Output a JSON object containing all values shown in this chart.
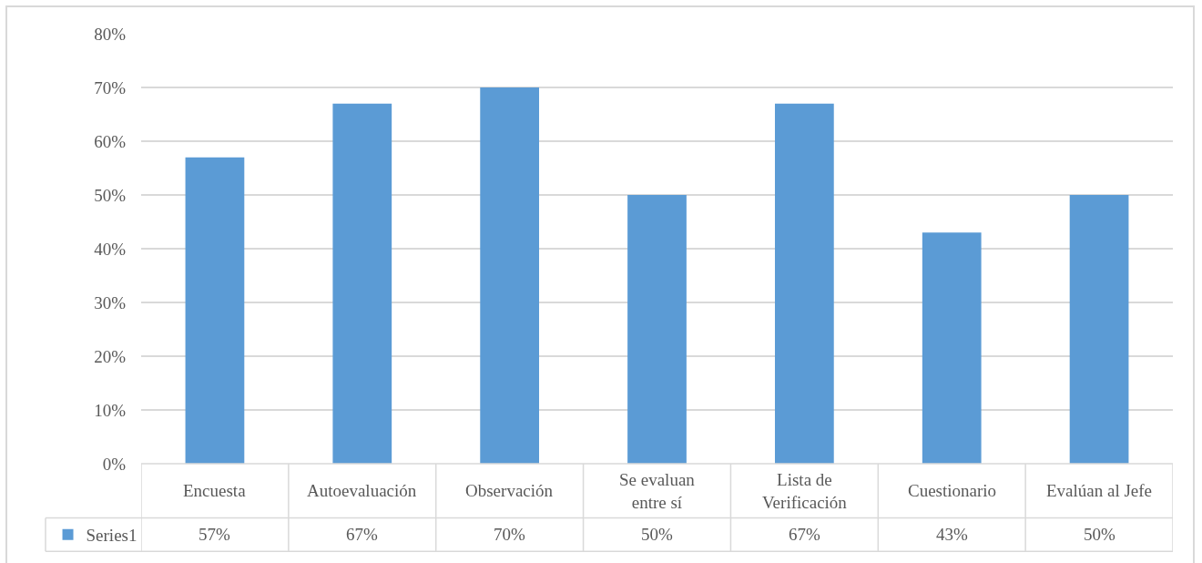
{
  "chart_data": {
    "type": "bar",
    "categories": [
      "Encuesta",
      "Autoevaluación",
      "Observación",
      "Se evaluan entre sí",
      "Lista de Verificación",
      "Cuestionario",
      "Evalúan al Jefe"
    ],
    "series": [
      {
        "name": "Series1",
        "color": "#5b9bd5",
        "values": [
          57,
          67,
          70,
          50,
          67,
          43,
          50
        ]
      }
    ],
    "ylim": [
      0,
      80
    ],
    "yticks": [
      {
        "value": 0,
        "label": "0%"
      },
      {
        "value": 10,
        "label": "10%"
      },
      {
        "value": 20,
        "label": "20%"
      },
      {
        "value": 30,
        "label": "30%"
      },
      {
        "value": 40,
        "label": "40%"
      },
      {
        "value": 50,
        "label": "50%"
      },
      {
        "value": 60,
        "label": "60%"
      },
      {
        "value": 70,
        "label": "70%"
      },
      {
        "value": 80,
        "label": "80%"
      }
    ],
    "value_labels": [
      "57%",
      "67%",
      "70%",
      "50%",
      "67%",
      "43%",
      "50%"
    ],
    "grid": "y",
    "legend": "bottom left"
  }
}
